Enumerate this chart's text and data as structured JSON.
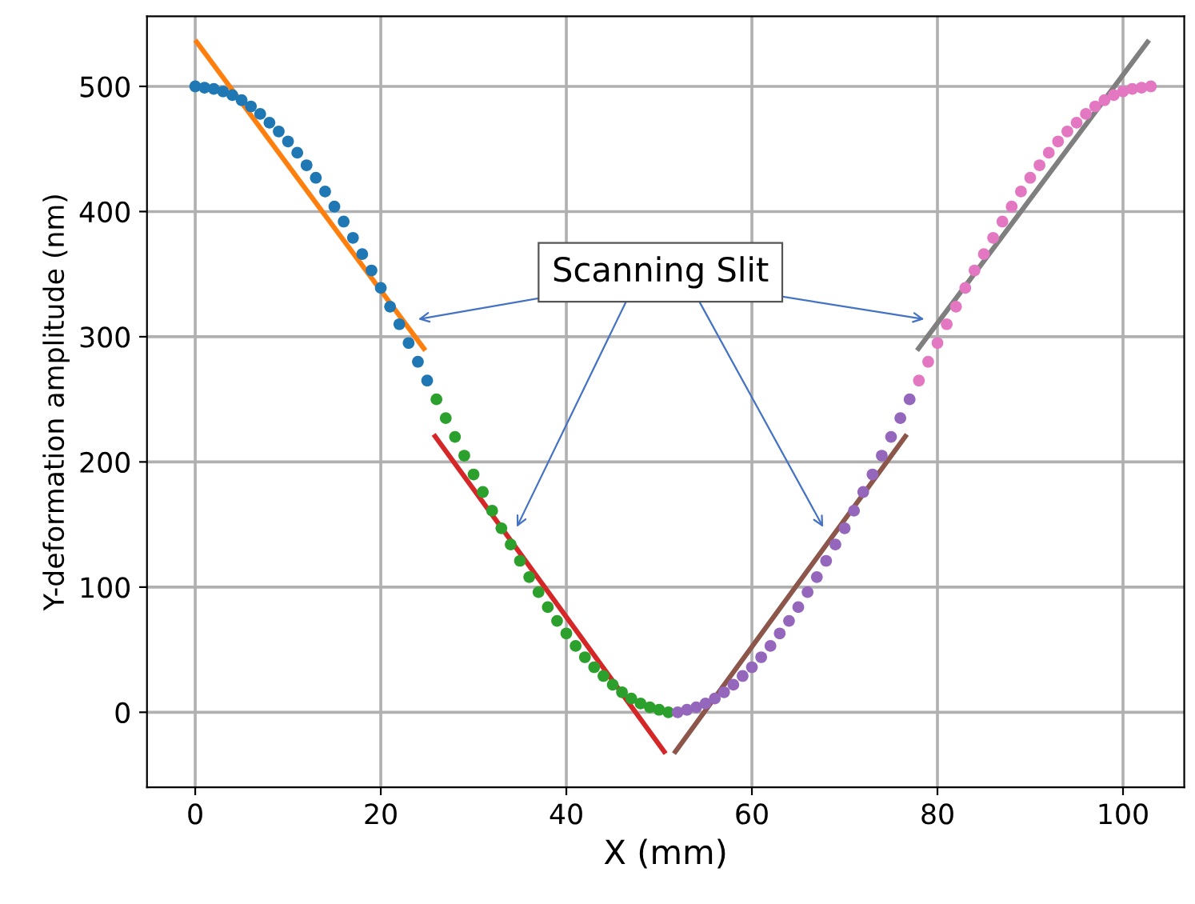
{
  "chart_data": {
    "type": "scatter",
    "xlabel": "X (mm)",
    "ylabel": "Y-deformation amplitude (nm)",
    "xlim": [
      -5.2,
      106.6
    ],
    "ylim": [
      -60,
      556
    ],
    "xticks": [
      0,
      20,
      40,
      60,
      80,
      100
    ],
    "yticks": [
      0,
      100,
      200,
      300,
      400,
      500
    ],
    "grid": true,
    "series": [
      {
        "marker": "circle",
        "color": "#1f77b4",
        "x": [
          0,
          1,
          2,
          3,
          4,
          5,
          6,
          7,
          8,
          9,
          10,
          11,
          12,
          13,
          14,
          15,
          16,
          17,
          18,
          19,
          20,
          21,
          22,
          23,
          24,
          25
        ],
        "values": [
          500,
          499,
          498,
          496,
          493,
          489,
          484,
          478,
          471,
          464,
          456,
          447,
          437,
          427,
          416,
          404,
          392,
          379,
          366,
          353,
          339,
          324,
          310,
          295,
          280,
          265
        ]
      },
      {
        "marker": "circle",
        "color": "#2ca02c",
        "x": [
          26,
          27,
          28,
          29,
          30,
          31,
          32,
          33,
          34,
          35,
          36,
          37,
          38,
          39,
          40,
          41,
          42,
          43,
          44,
          45,
          46,
          47,
          48,
          49,
          50,
          51
        ],
        "values": [
          250,
          235,
          220,
          205,
          190,
          176,
          161,
          147,
          134,
          121,
          108,
          96,
          84,
          73,
          63,
          53,
          44,
          36,
          29,
          22,
          16,
          11,
          7,
          4,
          2,
          0
        ]
      },
      {
        "marker": "circle",
        "color": "#9467bd",
        "x": [
          52,
          53,
          54,
          55,
          56,
          57,
          58,
          59,
          60,
          61,
          62,
          63,
          64,
          65,
          66,
          67,
          68,
          69,
          70,
          71,
          72,
          73,
          74,
          75,
          76,
          77
        ],
        "values": [
          0,
          2,
          4,
          7,
          11,
          16,
          22,
          29,
          36,
          44,
          53,
          63,
          73,
          84,
          96,
          108,
          121,
          134,
          147,
          161,
          176,
          190,
          205,
          220,
          235,
          250
        ]
      },
      {
        "marker": "circle",
        "color": "#e377c2",
        "x": [
          78,
          79,
          80,
          81,
          82,
          83,
          84,
          85,
          86,
          87,
          88,
          89,
          90,
          91,
          92,
          93,
          94,
          95,
          96,
          97,
          98,
          99,
          100,
          101,
          102,
          103
        ],
        "values": [
          265,
          280,
          295,
          310,
          324,
          339,
          353,
          366,
          379,
          392,
          404,
          416,
          427,
          437,
          447,
          456,
          464,
          471,
          478,
          484,
          489,
          493,
          496,
          498,
          499,
          500
        ]
      },
      {
        "type": "line",
        "color": "#ff7f0e",
        "x": [
          0,
          24.8
        ],
        "values": [
          537,
          289
        ]
      },
      {
        "type": "line",
        "color": "#d62728",
        "x": [
          25.7,
          50.7
        ],
        "values": [
          222,
          -33
        ]
      },
      {
        "type": "line",
        "color": "#8c564b",
        "x": [
          51.6,
          76.7
        ],
        "values": [
          -33,
          222
        ]
      },
      {
        "type": "line",
        "color": "#7f7f7f",
        "x": [
          77.8,
          102.8
        ],
        "values": [
          289,
          537
        ]
      }
    ],
    "annotations": [
      "Scanning Slit"
    ]
  }
}
